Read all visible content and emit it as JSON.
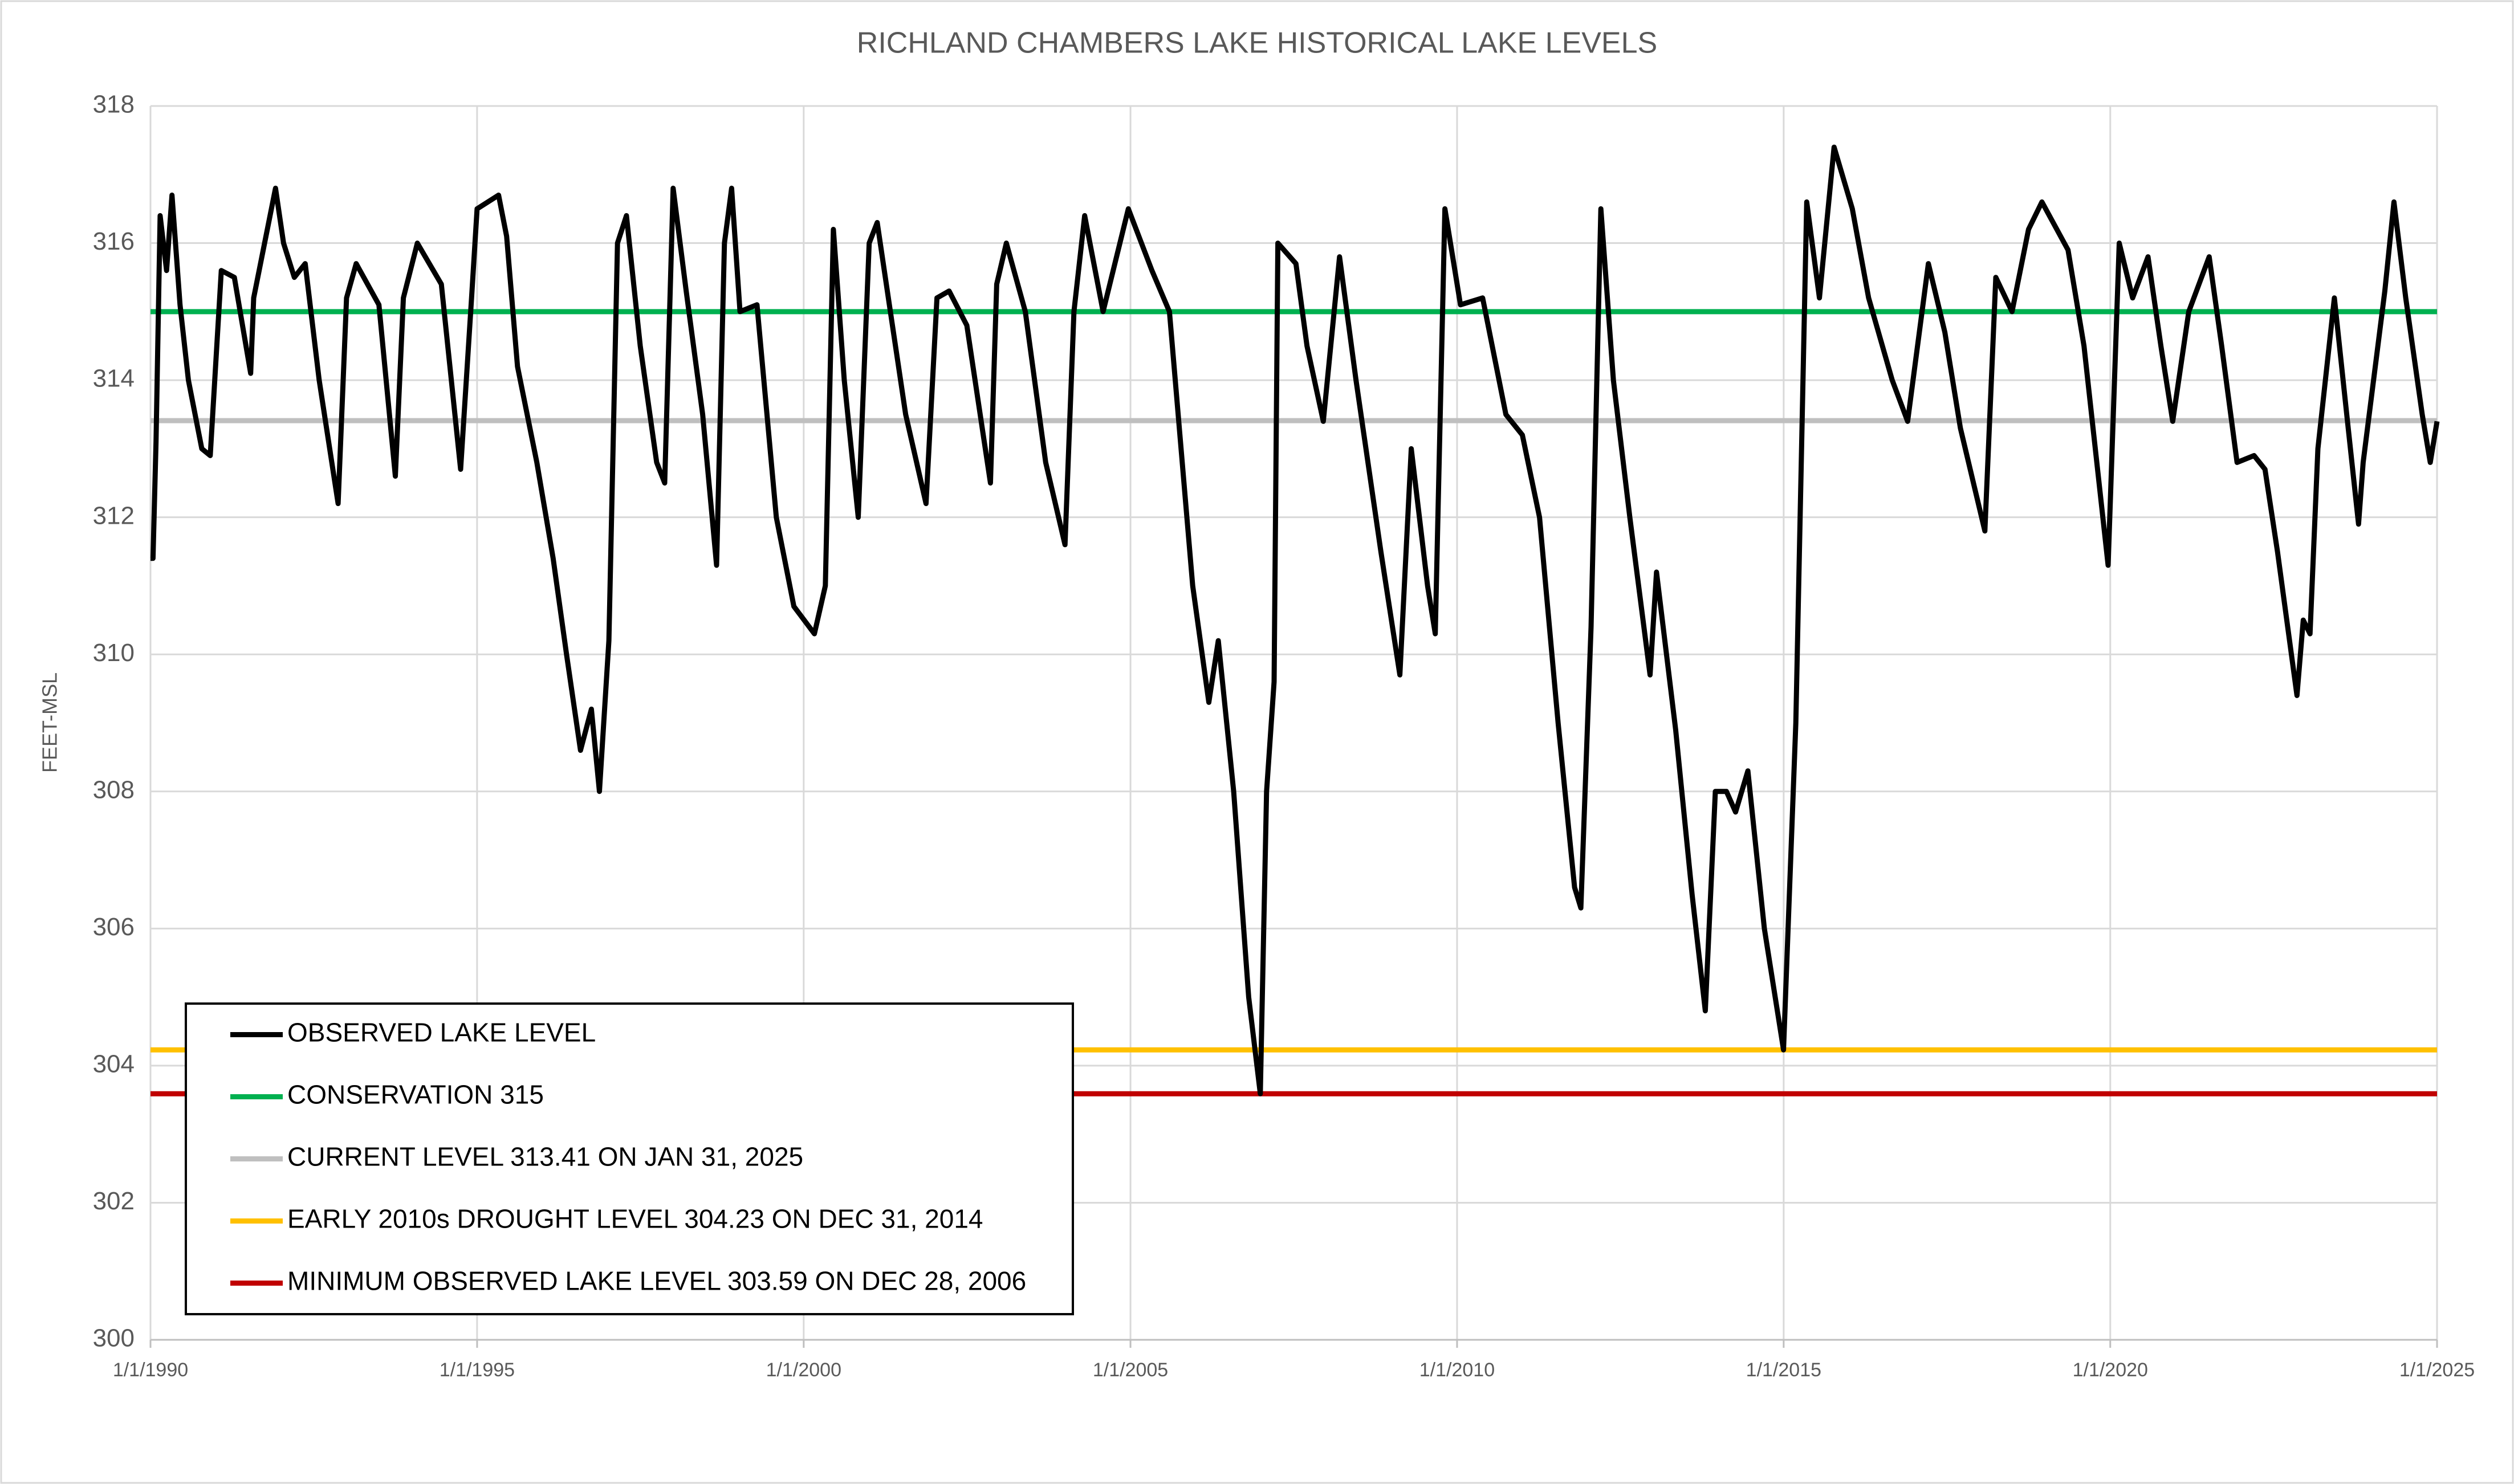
{
  "chart_data": {
    "type": "line",
    "title": "RICHLAND CHAMBERS LAKE HISTORICAL LAKE LEVELS",
    "y_label": "FEET-MSL",
    "xlim": [
      "1990-01-01",
      "2025-01-01"
    ],
    "xticks": [
      {
        "value": "1990-01-01",
        "label": "1/1/1990"
      },
      {
        "value": "1995-01-01",
        "label": "1/1/1995"
      },
      {
        "value": "2000-01-01",
        "label": "1/1/2000"
      },
      {
        "value": "2005-01-01",
        "label": "1/1/2005"
      },
      {
        "value": "2010-01-01",
        "label": "1/1/2010"
      },
      {
        "value": "2015-01-01",
        "label": "1/1/2015"
      },
      {
        "value": "2020-01-01",
        "label": "1/1/2020"
      },
      {
        "value": "2025-01-01",
        "label": "1/1/2025"
      }
    ],
    "ylim": [
      300,
      318
    ],
    "yticks": [
      300,
      302,
      304,
      306,
      308,
      310,
      312,
      314,
      316,
      318
    ],
    "grid": true,
    "legend": "lower left",
    "x": [
      "1990-01-01",
      "1990-01-15",
      "1990-02-01",
      "1990-02-24",
      "1990-04-01",
      "1990-05-01",
      "1990-06-15",
      "1990-08-01",
      "1990-10-15",
      "1990-12-01",
      "1991-02-01",
      "1991-04-15",
      "1991-07-15",
      "1991-08-01",
      "1991-12-01",
      "1992-01-15",
      "1992-03-15",
      "1992-05-15",
      "1992-08-01",
      "1992-11-15",
      "1993-01-01",
      "1993-02-24",
      "1993-07-01",
      "1993-10-01",
      "1993-11-15",
      "1994-02-01",
      "1994-06-15",
      "1994-10-01",
      "1994-12-01",
      "1995-01-01",
      "1995-05-01",
      "1995-06-15",
      "1995-08-15",
      "1995-12-01",
      "1996-03-01",
      "1996-05-15",
      "1996-08-01",
      "1996-10-01",
      "1996-11-15",
      "1997-01-07",
      "1997-02-24",
      "1997-04-15",
      "1997-07-01",
      "1997-10-01",
      "1997-11-15",
      "1998-01-01",
      "1998-03-15",
      "1998-06-15",
      "1998-09-01",
      "1998-10-15",
      "1998-11-24",
      "1999-01-10",
      "1999-04-15",
      "1999-08-01",
      "1999-11-07",
      "2000-03-01",
      "2000-05-01",
      "2000-06-15",
      "2000-08-15",
      "2000-11-01",
      "2001-01-01",
      "2001-02-15",
      "2001-04-24",
      "2001-07-24",
      "2001-11-15",
      "2002-01-15",
      "2002-03-24",
      "2002-07-01",
      "2002-11-10",
      "2002-12-15",
      "2003-02-07",
      "2003-05-24",
      "2003-09-15",
      "2004-01-01",
      "2004-02-20",
      "2004-04-20",
      "2004-08-01",
      "2004-12-20",
      "2005-05-01",
      "2005-08-07",
      "2005-12-15",
      "2006-03-15",
      "2006-05-07",
      "2006-08-01",
      "2006-10-24",
      "2006-12-28",
      "2007-02-01",
      "2007-03-15",
      "2007-04-05",
      "2007-07-15",
      "2007-09-15",
      "2007-12-15",
      "2008-03-15",
      "2008-06-15",
      "2008-11-01",
      "2009-02-15",
      "2009-04-20",
      "2009-07-20",
      "2009-09-01",
      "2009-10-25",
      "2010-01-20",
      "2010-05-24",
      "2010-10-01",
      "2011-01-01",
      "2011-04-07",
      "2011-07-20",
      "2011-10-20",
      "2011-11-24",
      "2012-01-20",
      "2012-03-15",
      "2012-05-24",
      "2012-08-24",
      "2012-12-15",
      "2013-01-20",
      "2013-05-07",
      "2013-08-07",
      "2013-10-20",
      "2013-12-15",
      "2014-02-15",
      "2014-04-07",
      "2014-06-15",
      "2014-09-15",
      "2014-12-31",
      "2015-03-10",
      "2015-05-10",
      "2015-07-20",
      "2015-10-10",
      "2016-01-20",
      "2016-04-20",
      "2016-08-30",
      "2016-11-24",
      "2017-03-20",
      "2017-06-20",
      "2017-09-15",
      "2018-01-30",
      "2018-04-01",
      "2018-07-01",
      "2018-10-01",
      "2018-12-15",
      "2019-05-10",
      "2019-08-07",
      "2019-12-20",
      "2020-02-20",
      "2020-05-05",
      "2020-07-30",
      "2020-10-10",
      "2020-12-15",
      "2021-03-15",
      "2021-07-07",
      "2021-09-15",
      "2021-12-10",
      "2022-03-15",
      "2022-05-15",
      "2022-07-24",
      "2022-11-10",
      "2022-12-15",
      "2023-01-22",
      "2023-03-07",
      "2023-06-07",
      "2023-08-15",
      "2023-10-20",
      "2023-11-15",
      "2024-03-15",
      "2024-05-05",
      "2024-07-10",
      "2024-10-10",
      "2024-11-24",
      "2025-01-01"
    ],
    "series": [
      {
        "name": "OBSERVED LAKE LEVEL",
        "color": "#000000",
        "values": [
          311.4,
          311.4,
          313.1,
          316.4,
          315.6,
          316.7,
          315.1,
          314.0,
          313.0,
          312.9,
          315.6,
          315.5,
          314.1,
          315.2,
          316.8,
          316.0,
          315.5,
          315.7,
          314.0,
          312.2,
          315.2,
          315.7,
          315.1,
          312.6,
          315.2,
          316.0,
          315.4,
          312.7,
          315.2,
          316.5,
          316.7,
          316.1,
          314.2,
          312.8,
          311.4,
          310.0,
          308.6,
          309.2,
          308.0,
          310.2,
          316.0,
          316.4,
          314.5,
          312.8,
          312.5,
          316.8,
          315.3,
          313.5,
          311.3,
          316.0,
          316.8,
          315.0,
          315.1,
          312.0,
          310.7,
          310.3,
          311.0,
          316.2,
          314.0,
          312.0,
          316.0,
          316.3,
          315.1,
          313.5,
          312.2,
          315.2,
          315.3,
          314.8,
          312.5,
          315.4,
          316.0,
          315.0,
          312.8,
          311.6,
          315.0,
          316.4,
          315.0,
          316.5,
          315.6,
          315.0,
          311.0,
          309.3,
          310.2,
          308.0,
          305.0,
          303.59,
          308.0,
          309.6,
          316.0,
          315.7,
          314.5,
          313.4,
          315.8,
          314.0,
          311.5,
          309.7,
          313.0,
          311.0,
          310.3,
          316.5,
          315.1,
          315.2,
          313.5,
          313.2,
          312.0,
          309.0,
          306.6,
          306.3,
          310.4,
          316.5,
          314.0,
          312.0,
          309.7,
          311.2,
          308.9,
          306.5,
          304.8,
          308.0,
          308.0,
          307.7,
          308.3,
          306.0,
          304.23,
          309.0,
          316.6,
          315.2,
          317.4,
          316.5,
          315.2,
          314.0,
          313.4,
          315.7,
          314.7,
          313.3,
          311.8,
          315.5,
          315.0,
          316.2,
          316.6,
          315.9,
          314.5,
          311.3,
          316.0,
          315.2,
          315.8,
          314.5,
          313.4,
          315.0,
          315.8,
          314.5,
          312.8,
          312.9,
          312.7,
          311.5,
          309.4,
          310.5,
          310.3,
          313.0,
          315.2,
          313.5,
          311.9,
          312.8,
          315.3,
          316.6,
          315.2,
          313.5,
          312.8,
          313.4
        ]
      }
    ],
    "reference_lines": [
      {
        "name": "CONSERVATION 315",
        "color": "#00b050",
        "value": 315
      },
      {
        "name": "CURRENT LEVEL 313.41 ON JAN 31, 2025",
        "color": "#bfbfbf",
        "value": 313.41
      },
      {
        "name": "EARLY 2010s DROUGHT LEVEL 304.23 ON DEC 31, 2014",
        "color": "#ffc000",
        "value": 304.23
      },
      {
        "name": "MINIMUM OBSERVED LAKE LEVEL 303.59 ON DEC 28, 2006",
        "color": "#c00000",
        "value": 303.59
      }
    ]
  }
}
